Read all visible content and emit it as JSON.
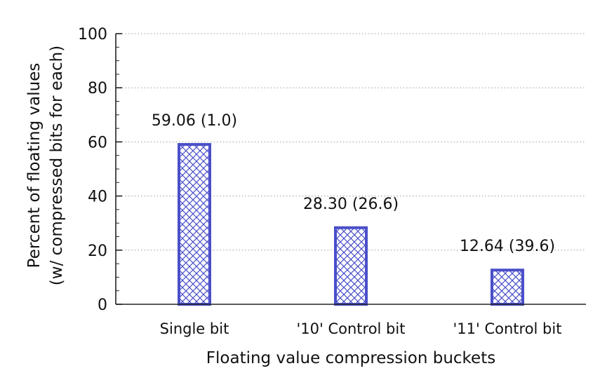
{
  "chart_data": {
    "type": "bar",
    "title": "",
    "categories": [
      "Single bit",
      "'10' Control bit",
      "'11' Control bit"
    ],
    "values": [
      59.06,
      28.3,
      12.64
    ],
    "data_labels": [
      "59.06 (1.0)",
      "28.30 (26.6)",
      "12.64 (39.6)"
    ],
    "xlabel": "Floating value compression buckets",
    "ylabel_lines": [
      "Percent of floating values",
      "(w/ compressed bits for each)"
    ],
    "ylim": [
      0,
      100
    ],
    "yticks": [
      0,
      20,
      40,
      60,
      80,
      100
    ],
    "grid": true,
    "bar_color": "#4a4fc9",
    "bar_pattern": "crosshatch"
  }
}
